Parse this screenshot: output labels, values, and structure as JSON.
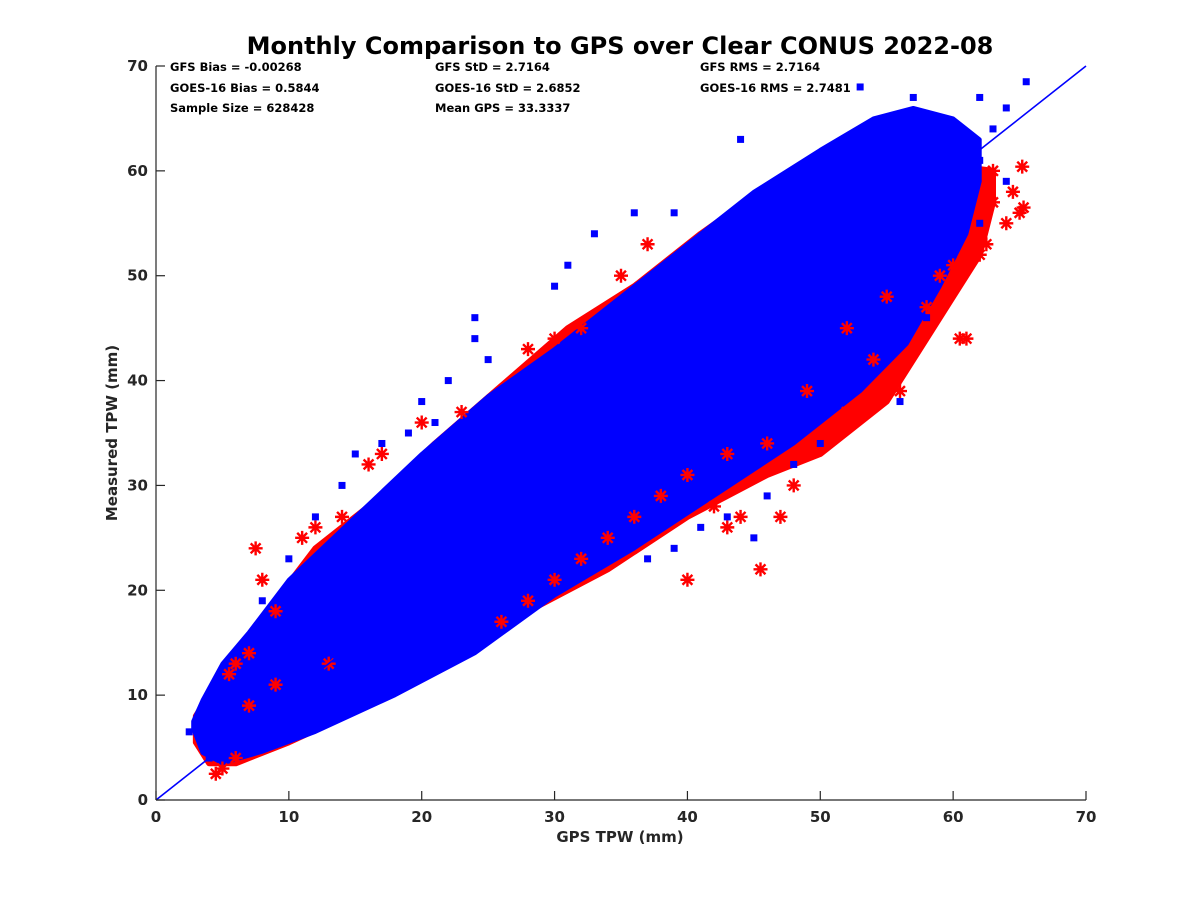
{
  "chart_data": {
    "type": "scatter",
    "title": "Monthly Comparison to GPS over Clear CONUS 2022-08",
    "xlabel": "GPS TPW (mm)",
    "ylabel": "Measured TPW (mm)",
    "xlim": [
      0,
      70
    ],
    "ylim": [
      0,
      70
    ],
    "xticks": [
      "0",
      "10",
      "20",
      "30",
      "40",
      "50",
      "60",
      "70"
    ],
    "yticks": [
      "0",
      "10",
      "20",
      "30",
      "40",
      "50",
      "60",
      "70"
    ],
    "grid": false,
    "reference_line": {
      "type": "one-to-one",
      "from": [
        0,
        0
      ],
      "to": [
        70,
        70
      ],
      "color": "#0000ff"
    },
    "stats": [
      [
        "GFS Bias = -0.00268",
        "GFS StD = 2.7164",
        "GFS RMS = 2.7164"
      ],
      [
        "GOES-16 Bias = 0.5844",
        "GOES-16 StD = 2.6852",
        "GOES-16 RMS = 2.7481"
      ],
      [
        "Sample Size = 628428",
        "Mean GPS = 33.3337",
        ""
      ]
    ],
    "series": [
      {
        "color": "#ff0000",
        "marker": "asterisk",
        "points": [
          [
            4.5,
            2.5
          ],
          [
            6,
            4
          ],
          [
            5,
            3
          ],
          [
            7.5,
            24
          ],
          [
            8,
            21
          ],
          [
            9,
            18
          ],
          [
            11,
            25
          ],
          [
            12,
            26
          ],
          [
            14,
            27
          ],
          [
            16,
            32
          ],
          [
            17,
            33
          ],
          [
            20,
            36
          ],
          [
            23,
            37
          ],
          [
            28,
            43
          ],
          [
            30,
            44
          ],
          [
            32,
            45
          ],
          [
            35,
            50
          ],
          [
            37,
            53
          ],
          [
            40,
            21
          ],
          [
            42,
            28
          ],
          [
            43,
            26
          ],
          [
            44,
            27
          ],
          [
            45.5,
            22
          ],
          [
            47,
            27
          ],
          [
            48,
            30
          ],
          [
            52,
            37
          ],
          [
            54,
            42
          ],
          [
            56,
            39
          ],
          [
            58,
            47
          ],
          [
            60,
            51
          ],
          [
            60.5,
            44
          ],
          [
            61,
            44
          ],
          [
            62,
            52
          ],
          [
            62.5,
            53
          ],
          [
            63,
            57
          ],
          [
            64,
            55
          ],
          [
            65,
            56
          ],
          [
            65.2,
            60.4
          ],
          [
            65.3,
            56.5
          ],
          [
            64.5,
            58
          ],
          [
            13,
            13
          ],
          [
            9,
            11
          ],
          [
            7,
            9
          ],
          [
            5.5,
            12
          ],
          [
            6,
            13
          ],
          [
            7,
            14
          ],
          [
            26,
            17
          ],
          [
            28,
            19
          ],
          [
            30,
            21
          ],
          [
            32,
            23
          ],
          [
            34,
            25
          ],
          [
            36,
            27
          ],
          [
            38,
            29
          ],
          [
            40,
            31
          ],
          [
            43,
            33
          ],
          [
            46,
            34
          ],
          [
            49,
            39
          ],
          [
            52,
            45
          ],
          [
            55,
            48
          ],
          [
            59,
            50
          ],
          [
            62,
            54
          ],
          [
            63,
            60
          ]
        ]
      },
      {
        "color": "#0000ff",
        "marker": "square",
        "points": [
          [
            2.5,
            6.5
          ],
          [
            4,
            4
          ],
          [
            5,
            5
          ],
          [
            4,
            9
          ],
          [
            6,
            10
          ],
          [
            8,
            8
          ],
          [
            10,
            9
          ],
          [
            12,
            8
          ],
          [
            8,
            13
          ],
          [
            10,
            12
          ],
          [
            12,
            15
          ],
          [
            14,
            11
          ],
          [
            16,
            14
          ],
          [
            15,
            17
          ],
          [
            18,
            18
          ],
          [
            17,
            21
          ],
          [
            14,
            20
          ],
          [
            20,
            20
          ],
          [
            22,
            21
          ],
          [
            24,
            23
          ],
          [
            19,
            24
          ],
          [
            22,
            26
          ],
          [
            25,
            27
          ],
          [
            27,
            24
          ],
          [
            28,
            27
          ],
          [
            30,
            28
          ],
          [
            26,
            30
          ],
          [
            29,
            32
          ],
          [
            32,
            31
          ],
          [
            34,
            30
          ],
          [
            31,
            35
          ],
          [
            35,
            34
          ],
          [
            36,
            37
          ],
          [
            38,
            35
          ],
          [
            33,
            38
          ],
          [
            37,
            40
          ],
          [
            39,
            39
          ],
          [
            41,
            38
          ],
          [
            40,
            42
          ],
          [
            42,
            43
          ],
          [
            44,
            40
          ],
          [
            38,
            45
          ],
          [
            43,
            46
          ],
          [
            45,
            45
          ],
          [
            47,
            43
          ],
          [
            41,
            48
          ],
          [
            45,
            50
          ],
          [
            47,
            48
          ],
          [
            49,
            46
          ],
          [
            46,
            52
          ],
          [
            49,
            53
          ],
          [
            51,
            50
          ],
          [
            48,
            55
          ],
          [
            51,
            56
          ],
          [
            53,
            54
          ],
          [
            55,
            52
          ],
          [
            52,
            58
          ],
          [
            54,
            59
          ],
          [
            56,
            57
          ],
          [
            57,
            55
          ],
          [
            55,
            61
          ],
          [
            57,
            62
          ],
          [
            59,
            60
          ],
          [
            58,
            64
          ],
          [
            60,
            63
          ],
          [
            61,
            58
          ],
          [
            62,
            61
          ],
          [
            63,
            64
          ],
          [
            65.5,
            68.5
          ],
          [
            64,
            66
          ],
          [
            62,
            67
          ],
          [
            53,
            68
          ],
          [
            57,
            67
          ],
          [
            44,
            63
          ],
          [
            39,
            56
          ],
          [
            36,
            56
          ],
          [
            33,
            54
          ],
          [
            31,
            51
          ],
          [
            30,
            49
          ],
          [
            24,
            46
          ],
          [
            24,
            44
          ],
          [
            25,
            42
          ],
          [
            22,
            40
          ],
          [
            20,
            38
          ],
          [
            21,
            36
          ],
          [
            19,
            35
          ],
          [
            17,
            34
          ],
          [
            15,
            33
          ],
          [
            14,
            30
          ],
          [
            15,
            26
          ],
          [
            12,
            27
          ],
          [
            10,
            23
          ],
          [
            11,
            21
          ],
          [
            8,
            19
          ],
          [
            8,
            16
          ],
          [
            6,
            14
          ],
          [
            23,
            16
          ],
          [
            26,
            18
          ],
          [
            27,
            19
          ],
          [
            29,
            20
          ],
          [
            30,
            22
          ],
          [
            33,
            23
          ],
          [
            35,
            25
          ],
          [
            36,
            26
          ],
          [
            37,
            23
          ],
          [
            39,
            24
          ],
          [
            41,
            26
          ],
          [
            43,
            27
          ],
          [
            45,
            25
          ],
          [
            46,
            29
          ],
          [
            48,
            32
          ],
          [
            50,
            34
          ],
          [
            51,
            38
          ],
          [
            53,
            40
          ],
          [
            55,
            43
          ],
          [
            56,
            38
          ],
          [
            58,
            46
          ],
          [
            58,
            50
          ],
          [
            60,
            52
          ],
          [
            62,
            55
          ],
          [
            64,
            59
          ]
        ]
      }
    ],
    "density_band": {
      "color": "#0000ff",
      "lower": [
        [
          2.8,
          6.8
        ],
        [
          3.5,
          4.5
        ],
        [
          5,
          3.5
        ],
        [
          8,
          4.6
        ],
        [
          12,
          6.5
        ],
        [
          18,
          10
        ],
        [
          24,
          14
        ],
        [
          30,
          19.5
        ],
        [
          36,
          24
        ],
        [
          42,
          29
        ],
        [
          48,
          34
        ],
        [
          53,
          39
        ],
        [
          56.5,
          43.5
        ],
        [
          59,
          49
        ],
        [
          61,
          54
        ],
        [
          62,
          59
        ]
      ],
      "upper": [
        [
          62,
          63
        ],
        [
          60,
          65
        ],
        [
          57,
          66
        ],
        [
          54,
          65
        ],
        [
          50,
          62
        ],
        [
          45,
          58
        ],
        [
          40,
          53
        ],
        [
          35,
          48
        ],
        [
          30,
          43
        ],
        [
          25,
          38.5
        ],
        [
          20,
          33
        ],
        [
          15,
          27
        ],
        [
          10,
          21
        ],
        [
          7,
          16
        ],
        [
          5,
          13
        ],
        [
          3.5,
          9.5
        ],
        [
          2.8,
          7.5
        ]
      ]
    },
    "red_fringe": {
      "color": "#ff0000",
      "lower": [
        [
          3,
          5.5
        ],
        [
          4,
          3.5
        ],
        [
          6,
          3.5
        ],
        [
          10,
          5.5
        ],
        [
          16,
          9
        ],
        [
          22,
          13
        ],
        [
          28,
          18
        ],
        [
          34,
          22
        ],
        [
          40,
          27
        ],
        [
          46,
          31
        ],
        [
          50,
          33
        ],
        [
          55,
          38
        ],
        [
          58,
          44
        ],
        [
          60,
          48
        ],
        [
          62,
          52
        ],
        [
          63,
          57
        ],
        [
          63,
          60
        ]
      ],
      "upper": [
        [
          3,
          8
        ],
        [
          4.5,
          11
        ],
        [
          6.5,
          15
        ],
        [
          9,
          19
        ],
        [
          12,
          24
        ],
        [
          16,
          28
        ],
        [
          21,
          34
        ],
        [
          26,
          39.5
        ],
        [
          31,
          45
        ],
        [
          36,
          49
        ],
        [
          41,
          54
        ],
        [
          46,
          58.5
        ],
        [
          51,
          62
        ]
      ]
    }
  }
}
